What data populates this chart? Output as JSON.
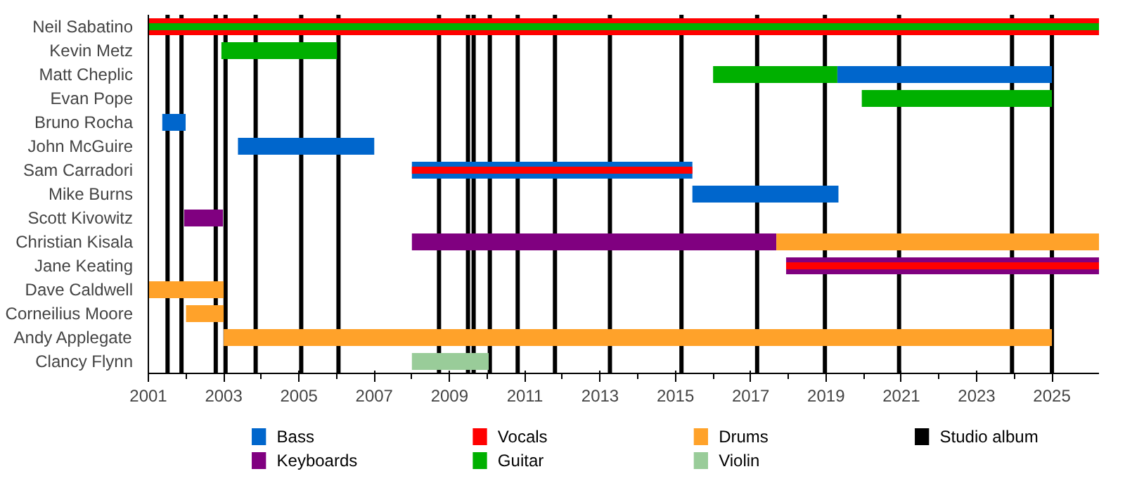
{
  "chart_data": {
    "type": "bar",
    "orientation": "horizontal",
    "categories": [
      "Neil Sabatino",
      "Kevin Metz",
      "Matt Cheplic",
      "Evan Pope",
      "Bruno Rocha",
      "John McGuire",
      "Sam Carradori",
      "Mike Burns",
      "Scott Kivowitz",
      "Christian Kisala",
      "Jane Keating",
      "Dave Caldwell",
      "Corneilius Moore",
      "Andy Applegate",
      "Clancy Flynn"
    ],
    "series": [
      {
        "name": "Bass",
        "color": "#0066cc",
        "base": [
          null,
          null,
          2019.3,
          null,
          2001.37,
          2003.38,
          2008.0,
          2015.45,
          null,
          null,
          null,
          null,
          null,
          null,
          null
        ],
        "values": [
          null,
          null,
          5.7,
          null,
          0.62,
          3.62,
          7.45,
          3.88,
          null,
          null,
          null,
          null,
          null,
          null,
          null
        ]
      },
      {
        "name": "Keyboards",
        "color": "#800080",
        "base": [
          null,
          null,
          null,
          null,
          null,
          null,
          null,
          null,
          2001.95,
          2008.0,
          2017.94,
          null,
          null,
          null,
          null
        ],
        "values": [
          null,
          null,
          null,
          null,
          null,
          null,
          null,
          null,
          1.03,
          9.68,
          8.31,
          null,
          null,
          null,
          null
        ]
      },
      {
        "name": "Vocals",
        "color": "#ff0000",
        "base": [
          2001.0,
          null,
          null,
          null,
          null,
          null,
          2008.0,
          null,
          null,
          null,
          2017.94,
          null,
          null,
          null,
          null
        ],
        "values": [
          25.25,
          null,
          null,
          null,
          null,
          null,
          7.45,
          null,
          null,
          null,
          8.31,
          null,
          null,
          null,
          null
        ]
      },
      {
        "name": "Guitar",
        "color": "#00b000",
        "base": [
          2001.0,
          2002.94,
          2016.0,
          2019.95,
          null,
          null,
          null,
          null,
          null,
          null,
          null,
          null,
          null,
          null,
          null
        ],
        "values": [
          25.25,
          3.07,
          3.3,
          5.05,
          null,
          null,
          null,
          null,
          null,
          null,
          null,
          null,
          null,
          null,
          null
        ]
      },
      {
        "name": "Drums",
        "color": "#ffa22a",
        "base": [
          null,
          null,
          null,
          null,
          null,
          null,
          null,
          null,
          null,
          2017.68,
          null,
          2001.0,
          2002.0,
          2003.0,
          null
        ],
        "values": [
          null,
          null,
          null,
          null,
          null,
          null,
          null,
          null,
          null,
          8.57,
          null,
          2.0,
          1.0,
          22.0,
          null
        ]
      },
      {
        "name": "Violin",
        "color": "#99cc99",
        "base": [
          null,
          null,
          null,
          null,
          null,
          null,
          null,
          null,
          null,
          null,
          null,
          null,
          null,
          null,
          2008.0
        ],
        "values": [
          null,
          null,
          null,
          null,
          null,
          null,
          null,
          null,
          null,
          null,
          null,
          null,
          null,
          null,
          2.04
        ]
      }
    ],
    "xlim": [
      2001,
      2026.25
    ],
    "xticks": [
      2001,
      2003,
      2005,
      2007,
      2009,
      2011,
      2013,
      2015,
      2017,
      2019,
      2021,
      2023,
      2025
    ],
    "ref_lines": [
      {
        "axis": "x",
        "value": 2001.51,
        "label": "Studio album",
        "color": "#000000"
      },
      {
        "axis": "x",
        "value": 2001.88,
        "color": "#000000"
      },
      {
        "axis": "x",
        "value": 2002.79,
        "color": "#000000"
      },
      {
        "axis": "x",
        "value": 2003.05,
        "color": "#000000"
      },
      {
        "axis": "x",
        "value": 2003.85,
        "color": "#000000"
      },
      {
        "axis": "x",
        "value": 2005.06,
        "color": "#000000"
      },
      {
        "axis": "x",
        "value": 2006.05,
        "color": "#000000"
      },
      {
        "axis": "x",
        "value": 2008.72,
        "color": "#000000"
      },
      {
        "axis": "x",
        "value": 2009.49,
        "color": "#000000"
      },
      {
        "axis": "x",
        "value": 2009.64,
        "color": "#000000"
      },
      {
        "axis": "x",
        "value": 2010.07,
        "color": "#000000"
      },
      {
        "axis": "x",
        "value": 2010.81,
        "color": "#000000"
      },
      {
        "axis": "x",
        "value": 2011.8,
        "color": "#000000"
      },
      {
        "axis": "x",
        "value": 2013.26,
        "color": "#000000"
      },
      {
        "axis": "x",
        "value": 2015.16,
        "color": "#000000"
      },
      {
        "axis": "x",
        "value": 2017.17,
        "color": "#000000"
      },
      {
        "axis": "x",
        "value": 2018.97,
        "color": "#000000"
      },
      {
        "axis": "x",
        "value": 2020.94,
        "color": "#000000"
      },
      {
        "axis": "x",
        "value": 2023.94,
        "color": "#000000"
      },
      {
        "axis": "x",
        "value": 2025.0,
        "color": "#000000"
      }
    ],
    "grid": false,
    "legend": "bottom"
  }
}
